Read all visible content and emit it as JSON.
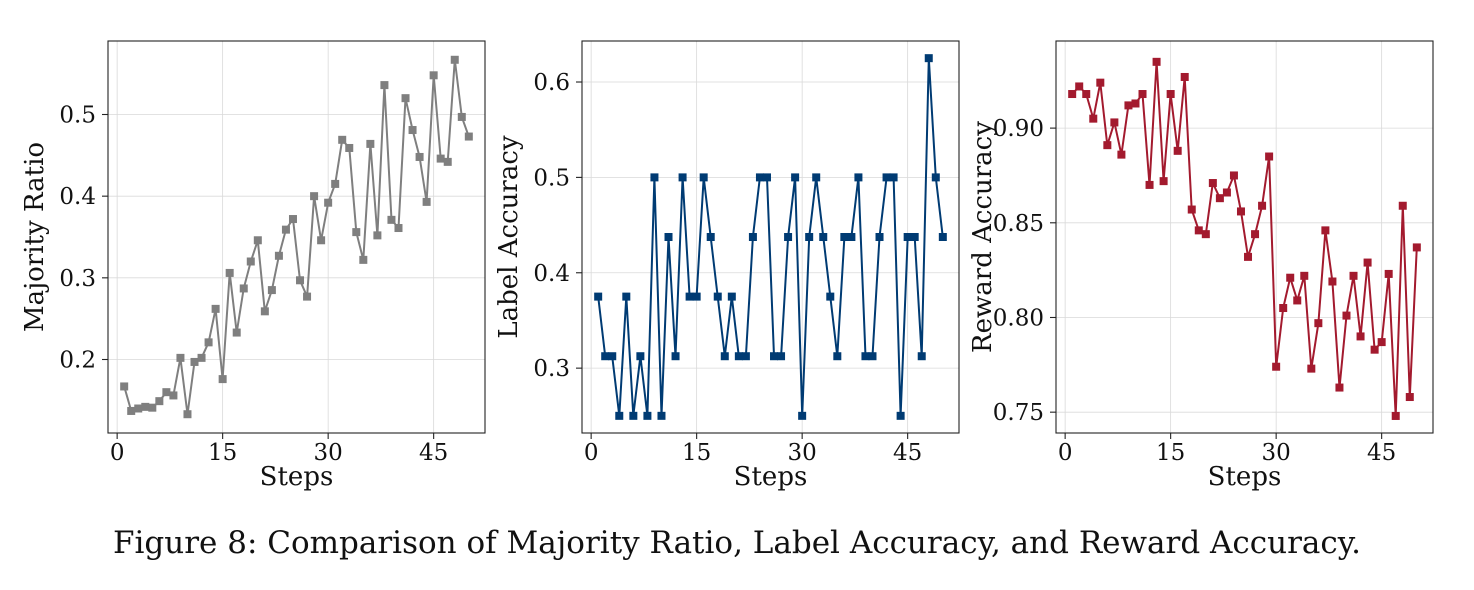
{
  "caption": "Figure 8: Comparison of Majority Ratio, Label Accuracy, and Reward Accuracy.",
  "chart_data": [
    {
      "type": "line",
      "xlabel": "Steps",
      "ylabel": "Majority Ratio",
      "marker": "square",
      "color": "#7f7f7f",
      "grid": true,
      "xticks": [
        0,
        15,
        30,
        45
      ],
      "yticks": [
        0.2,
        0.3,
        0.4,
        0.5
      ],
      "ytick_labels": [
        "0.2",
        "0.3",
        "0.4",
        "0.5"
      ],
      "xlim": [
        -1.3,
        52.3
      ],
      "ylim": [
        0.11,
        0.59
      ],
      "x": [
        1,
        2,
        3,
        4,
        5,
        6,
        7,
        8,
        9,
        10,
        11,
        12,
        13,
        14,
        15,
        16,
        17,
        18,
        19,
        20,
        21,
        22,
        23,
        24,
        25,
        26,
        27,
        28,
        29,
        30,
        31,
        32,
        33,
        34,
        35,
        36,
        37,
        38,
        39,
        40,
        41,
        42,
        43,
        44,
        45,
        46,
        47,
        48,
        49,
        50
      ],
      "y": [
        0.167,
        0.137,
        0.14,
        0.142,
        0.141,
        0.149,
        0.16,
        0.156,
        0.202,
        0.133,
        0.197,
        0.202,
        0.221,
        0.262,
        0.176,
        0.306,
        0.233,
        0.287,
        0.32,
        0.346,
        0.259,
        0.285,
        0.327,
        0.359,
        0.372,
        0.297,
        0.277,
        0.4,
        0.346,
        0.392,
        0.415,
        0.469,
        0.459,
        0.356,
        0.322,
        0.464,
        0.352,
        0.536,
        0.371,
        0.361,
        0.52,
        0.481,
        0.448,
        0.393,
        0.548,
        0.446,
        0.442,
        0.567,
        0.497,
        0.473
      ]
    },
    {
      "type": "line",
      "xlabel": "Steps",
      "ylabel": "Label Accuracy",
      "marker": "square",
      "color": "#003b73",
      "grid": true,
      "xticks": [
        0,
        15,
        30,
        45
      ],
      "yticks": [
        0.3,
        0.4,
        0.5,
        0.6
      ],
      "ytick_labels": [
        "0.3",
        "0.4",
        "0.5",
        "0.6"
      ],
      "xlim": [
        -1.3,
        52.3
      ],
      "ylim": [
        0.232,
        0.643
      ],
      "x": [
        1,
        2,
        3,
        4,
        5,
        6,
        7,
        8,
        9,
        10,
        11,
        12,
        13,
        14,
        15,
        16,
        17,
        18,
        19,
        20,
        21,
        22,
        23,
        24,
        25,
        26,
        27,
        28,
        29,
        30,
        31,
        32,
        33,
        34,
        35,
        36,
        37,
        38,
        39,
        40,
        41,
        42,
        43,
        44,
        45,
        46,
        47,
        48,
        49,
        50
      ],
      "y": [
        0.375,
        0.3125,
        0.3125,
        0.25,
        0.375,
        0.25,
        0.3125,
        0.25,
        0.5,
        0.25,
        0.4375,
        0.3125,
        0.5,
        0.375,
        0.375,
        0.5,
        0.4375,
        0.375,
        0.3125,
        0.375,
        0.3125,
        0.3125,
        0.4375,
        0.5,
        0.5,
        0.3125,
        0.3125,
        0.4375,
        0.5,
        0.25,
        0.4375,
        0.5,
        0.4375,
        0.375,
        0.3125,
        0.4375,
        0.4375,
        0.5,
        0.3125,
        0.3125,
        0.4375,
        0.5,
        0.5,
        0.25,
        0.4375,
        0.4375,
        0.3125,
        0.625,
        0.5,
        0.4375
      ]
    },
    {
      "type": "line",
      "xlabel": "Steps",
      "ylabel": "Reward Accuracy",
      "marker": "square",
      "color": "#a31a2e",
      "grid": true,
      "xticks": [
        0,
        15,
        30,
        45
      ],
      "yticks": [
        0.75,
        0.8,
        0.85,
        0.9
      ],
      "ytick_labels": [
        "0.75",
        "0.80",
        "0.85",
        "0.90"
      ],
      "xlim": [
        -1.3,
        52.3
      ],
      "ylim": [
        0.739,
        0.946
      ],
      "x": [
        1,
        2,
        3,
        4,
        5,
        6,
        7,
        8,
        9,
        10,
        11,
        12,
        13,
        14,
        15,
        16,
        17,
        18,
        19,
        20,
        21,
        22,
        23,
        24,
        25,
        26,
        27,
        28,
        29,
        30,
        31,
        32,
        33,
        34,
        35,
        36,
        37,
        38,
        39,
        40,
        41,
        42,
        43,
        44,
        45,
        46,
        47,
        48,
        49,
        50
      ],
      "y": [
        0.918,
        0.922,
        0.918,
        0.905,
        0.924,
        0.891,
        0.903,
        0.886,
        0.912,
        0.913,
        0.918,
        0.87,
        0.935,
        0.872,
        0.918,
        0.888,
        0.927,
        0.857,
        0.846,
        0.844,
        0.871,
        0.863,
        0.866,
        0.875,
        0.856,
        0.832,
        0.844,
        0.859,
        0.885,
        0.774,
        0.805,
        0.821,
        0.809,
        0.822,
        0.773,
        0.797,
        0.846,
        0.819,
        0.763,
        0.801,
        0.822,
        0.79,
        0.829,
        0.783,
        0.787,
        0.823,
        0.748,
        0.859,
        0.758,
        0.837
      ]
    }
  ]
}
